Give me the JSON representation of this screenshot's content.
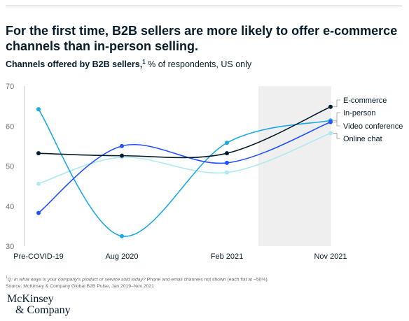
{
  "title": "For the first time, B2B sellers are more likely to offer e-commerce channels than in-person selling.",
  "subtitle": {
    "strong": "Channels offered by B2B sellers,",
    "footnote_mark": "1",
    "rest": "% of respondents, US only"
  },
  "footnote": {
    "mark": "1",
    "question": "Q: In what ways is your company's product or service sold today?",
    "note": "Phone and email channels not shown (each flat at ~50%).",
    "source": "Source: McKinsey & Company Global B2B Pulse, Jan 2019–Nov 2021"
  },
  "logo": {
    "line1": "McKinsey",
    "line2": "& Company"
  },
  "chart_data": {
    "type": "line",
    "categories": [
      "Pre-COVID-19",
      "Aug 2020",
      "Feb 2021",
      "Nov 2021"
    ],
    "ylim": [
      30,
      70
    ],
    "yticks": [
      30,
      40,
      50,
      60,
      70
    ],
    "grid": false,
    "highlight_category": "Nov 2021",
    "legend_position": "right",
    "series": [
      {
        "name": "E-commerce",
        "values": [
          53.2,
          52.6,
          53.2,
          64.8
        ],
        "color": "#051c2c"
      },
      {
        "name": "In-person",
        "values": [
          38.3,
          55.0,
          50.8,
          61.0
        ],
        "color": "#2251ff"
      },
      {
        "name": "Video conference",
        "values": [
          64.2,
          32.5,
          55.8,
          61.4
        ],
        "color": "#1aa8e8"
      },
      {
        "name": "Online chat",
        "values": [
          45.6,
          52.2,
          48.4,
          58.2
        ],
        "color": "#aee9f0"
      }
    ]
  }
}
